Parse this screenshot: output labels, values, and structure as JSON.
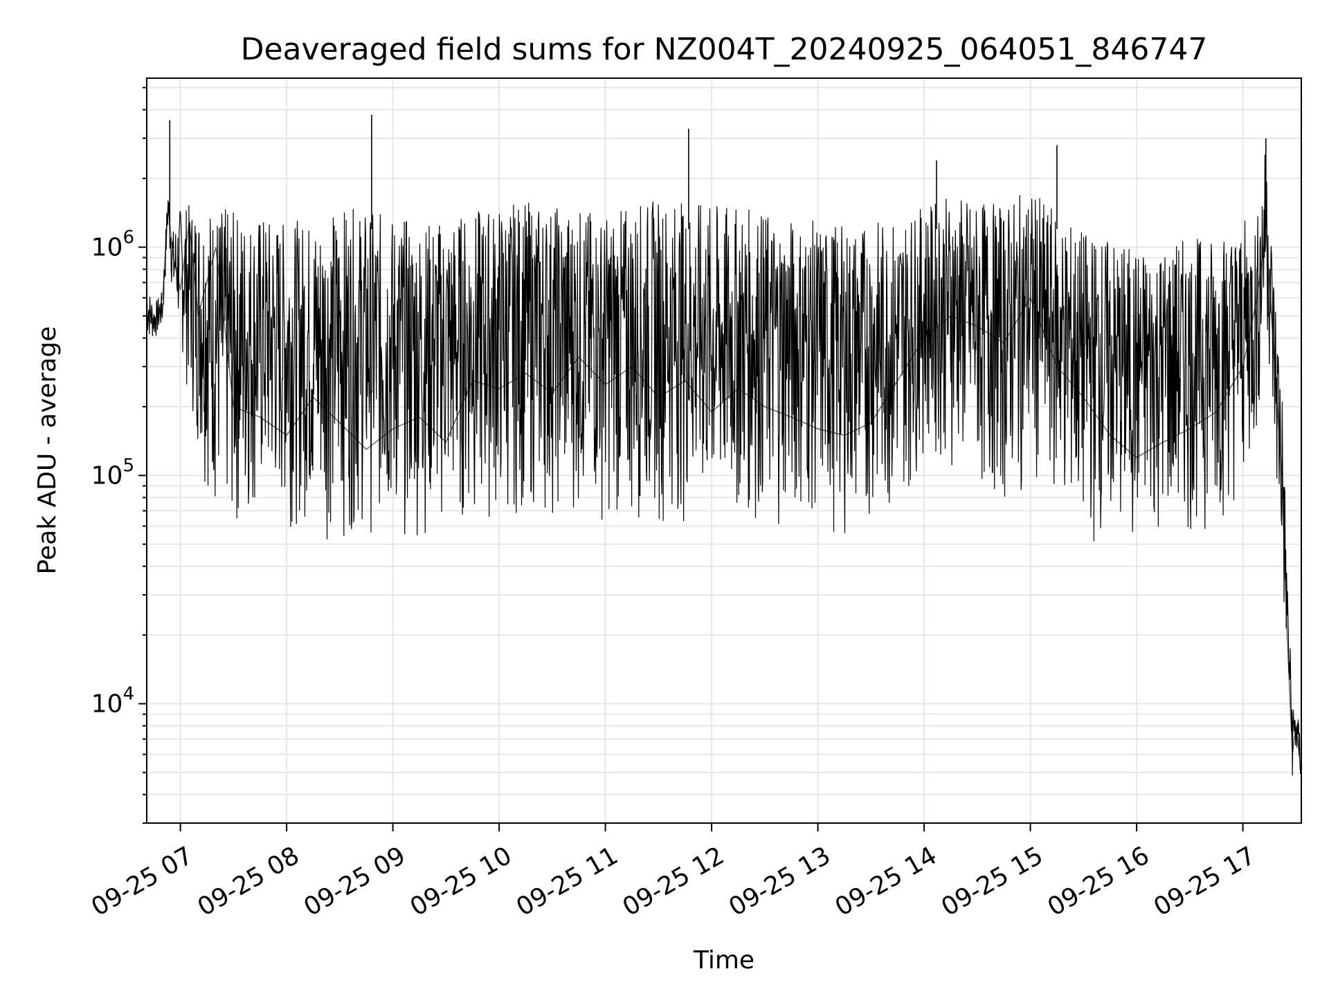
{
  "chart_data": {
    "type": "line",
    "title": "Deaveraged field sums for NZ004T_20240925_064051_846747",
    "xlabel": "Time",
    "ylabel": "Peak ADU - average",
    "y_scale": "log",
    "ylim": [
      3000,
      5500000
    ],
    "xlim": [
      "2024-09-25 06:41",
      "2024-09-25 17:33"
    ],
    "grid": true,
    "line_color": "#000000",
    "x_ticks": [
      "2024-09-25 07:00",
      "2024-09-25 08:00",
      "2024-09-25 09:00",
      "2024-09-25 10:00",
      "2024-09-25 11:00",
      "2024-09-25 12:00",
      "2024-09-25 13:00",
      "2024-09-25 14:00",
      "2024-09-25 15:00",
      "2024-09-25 16:00",
      "2024-09-25 17:00"
    ],
    "x_tick_labels": [
      "09-25 07",
      "09-25 08",
      "09-25 09",
      "09-25 10",
      "09-25 11",
      "09-25 12",
      "09-25 13",
      "09-25 14",
      "09-25 15",
      "09-25 16",
      "09-25 17"
    ],
    "y_ticks": [
      {
        "value": 10000,
        "base": "10",
        "exp": "4"
      },
      {
        "value": 100000,
        "base": "10",
        "exp": "5"
      },
      {
        "value": 1000000,
        "base": "10",
        "exp": "6"
      }
    ],
    "series": [
      {
        "x": [
          "2024-09-25 06:41",
          "2024-09-25 06:45",
          "2024-09-25 06:50",
          "2024-09-25 06:53",
          "2024-09-25 06:56",
          "2024-09-25 07:00",
          "2024-09-25 07:05",
          "2024-09-25 07:10",
          "2024-09-25 07:20",
          "2024-09-25 07:30",
          "2024-09-25 07:45",
          "2024-09-25 08:00",
          "2024-09-25 08:15",
          "2024-09-25 08:30",
          "2024-09-25 08:45",
          "2024-09-25 09:00",
          "2024-09-25 09:15",
          "2024-09-25 09:30",
          "2024-09-25 09:45",
          "2024-09-25 10:00",
          "2024-09-25 10:15",
          "2024-09-25 10:30",
          "2024-09-25 10:45",
          "2024-09-25 11:00",
          "2024-09-25 11:15",
          "2024-09-25 11:30",
          "2024-09-25 11:45",
          "2024-09-25 12:00",
          "2024-09-25 12:15",
          "2024-09-25 12:30",
          "2024-09-25 12:45",
          "2024-09-25 13:00",
          "2024-09-25 13:15",
          "2024-09-25 13:30",
          "2024-09-25 13:45",
          "2024-09-25 14:00",
          "2024-09-25 14:15",
          "2024-09-25 14:30",
          "2024-09-25 14:45",
          "2024-09-25 15:00",
          "2024-09-25 15:15",
          "2024-09-25 15:30",
          "2024-09-25 15:45",
          "2024-09-25 16:00",
          "2024-09-25 16:15",
          "2024-09-25 16:30",
          "2024-09-25 16:45",
          "2024-09-25 17:00",
          "2024-09-25 17:08",
          "2024-09-25 17:13",
          "2024-09-25 17:18",
          "2024-09-25 17:22",
          "2024-09-25 17:25",
          "2024-09-25 17:28",
          "2024-09-25 17:30",
          "2024-09-25 17:33"
        ],
        "y": [
          500000,
          450000,
          600000,
          1500000,
          900000,
          650000,
          1300000,
          500000,
          1000000,
          200000,
          180000,
          150000,
          220000,
          170000,
          130000,
          160000,
          180000,
          140000,
          260000,
          240000,
          280000,
          230000,
          330000,
          250000,
          300000,
          220000,
          260000,
          190000,
          240000,
          200000,
          180000,
          160000,
          150000,
          170000,
          260000,
          400000,
          500000,
          450000,
          380000,
          600000,
          300000,
          220000,
          150000,
          120000,
          140000,
          160000,
          190000,
          300000,
          600000,
          1200000,
          300000,
          100000,
          20000,
          6000,
          8000,
          5000
        ],
        "y_min_envelope": [
          380000,
          380000,
          420000,
          1100000,
          500000,
          360000,
          200000,
          120000,
          60000,
          50000,
          65000,
          60000,
          55000,
          50000,
          55000,
          50000,
          52000,
          55000,
          58000,
          60000,
          65000,
          62000,
          65000,
          60000,
          58000,
          62000,
          60000,
          55000,
          60000,
          58000,
          60000,
          58000,
          55000,
          60000,
          65000,
          120000,
          110000,
          80000,
          70000,
          90000,
          70000,
          50000,
          48000,
          46000,
          50000,
          52000,
          55000,
          80000,
          120000,
          500000,
          90000,
          30000,
          12000,
          4500,
          5500,
          4000
        ],
        "y_max_envelope": [
          700000,
          560000,
          650000,
          1900000,
          1200000,
          1500000,
          1550000,
          1550000,
          1550000,
          1450000,
          1400000,
          1300000,
          1350000,
          1500000,
          1450000,
          1400000,
          1300000,
          1350000,
          1450000,
          1550000,
          1600000,
          1550000,
          1500000,
          1400000,
          1550000,
          1650000,
          1600000,
          1550000,
          1500000,
          1450000,
          1350000,
          1300000,
          1250000,
          1300000,
          1350000,
          1500000,
          1700000,
          1600000,
          1550000,
          1800000,
          1400000,
          1200000,
          1100000,
          1000000,
          1050000,
          1100000,
          1150000,
          1300000,
          1350000,
          2900000,
          700000,
          300000,
          40000,
          10000,
          10000,
          7000
        ]
      }
    ],
    "spikes": [
      {
        "x": "2024-09-25 06:54",
        "y": 3600000
      },
      {
        "x": "2024-09-25 08:48",
        "y": 3800000
      },
      {
        "x": "2024-09-25 11:47",
        "y": 3300000
      },
      {
        "x": "2024-09-25 14:07",
        "y": 2400000
      },
      {
        "x": "2024-09-25 15:15",
        "y": 2800000
      },
      {
        "x": "2024-09-25 17:13",
        "y": 3000000
      }
    ]
  }
}
